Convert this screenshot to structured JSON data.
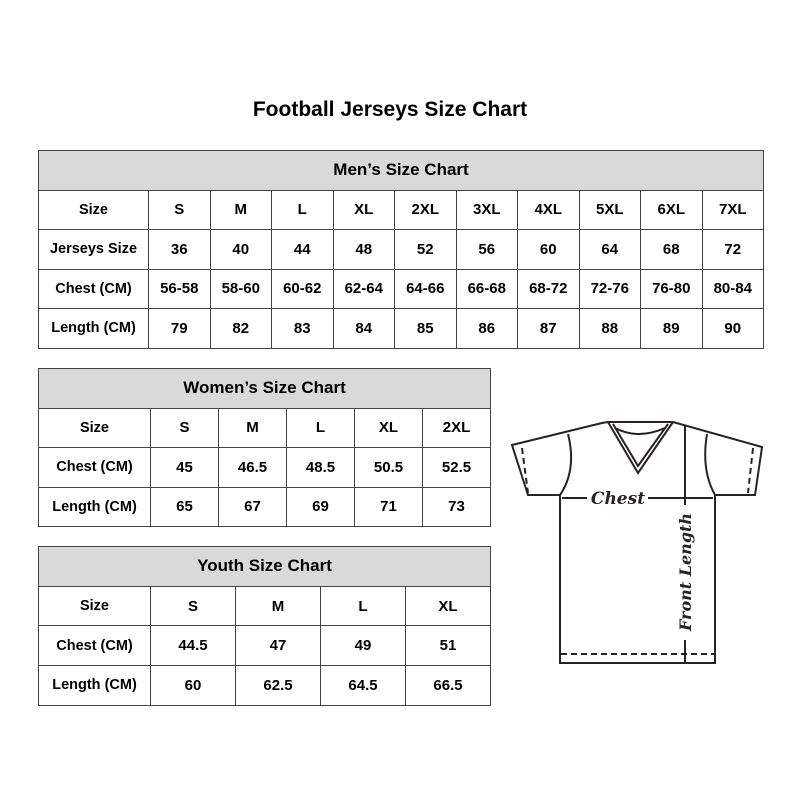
{
  "title": "Football Jerseys Size Chart",
  "men": {
    "heading": "Men’s Size Chart",
    "rows": [
      [
        "Size",
        "S",
        "M",
        "L",
        "XL",
        "2XL",
        "3XL",
        "4XL",
        "5XL",
        "6XL",
        "7XL"
      ],
      [
        "Jerseys Size",
        "36",
        "40",
        "44",
        "48",
        "52",
        "56",
        "60",
        "64",
        "68",
        "72"
      ],
      [
        "Chest (CM)",
        "56-58",
        "58-60",
        "60-62",
        "62-64",
        "64-66",
        "66-68",
        "68-72",
        "72-76",
        "76-80",
        "80-84"
      ],
      [
        "Length (CM)",
        "79",
        "82",
        "83",
        "84",
        "85",
        "86",
        "87",
        "88",
        "89",
        "90"
      ]
    ]
  },
  "women": {
    "heading": "Women’s Size Chart",
    "rows": [
      [
        "Size",
        "S",
        "M",
        "L",
        "XL",
        "2XL"
      ],
      [
        "Chest (CM)",
        "45",
        "46.5",
        "48.5",
        "50.5",
        "52.5"
      ],
      [
        "Length (CM)",
        "65",
        "67",
        "69",
        "71",
        "73"
      ]
    ]
  },
  "youth": {
    "heading": "Youth Size Chart",
    "rows": [
      [
        "Size",
        "S",
        "M",
        "L",
        "XL"
      ],
      [
        "Chest (CM)",
        "44.5",
        "47",
        "49",
        "51"
      ],
      [
        "Length (CM)",
        "60",
        "62.5",
        "64.5",
        "66.5"
      ]
    ]
  },
  "diagram": {
    "chest_label": "Chest",
    "length_label": "Front Length"
  }
}
